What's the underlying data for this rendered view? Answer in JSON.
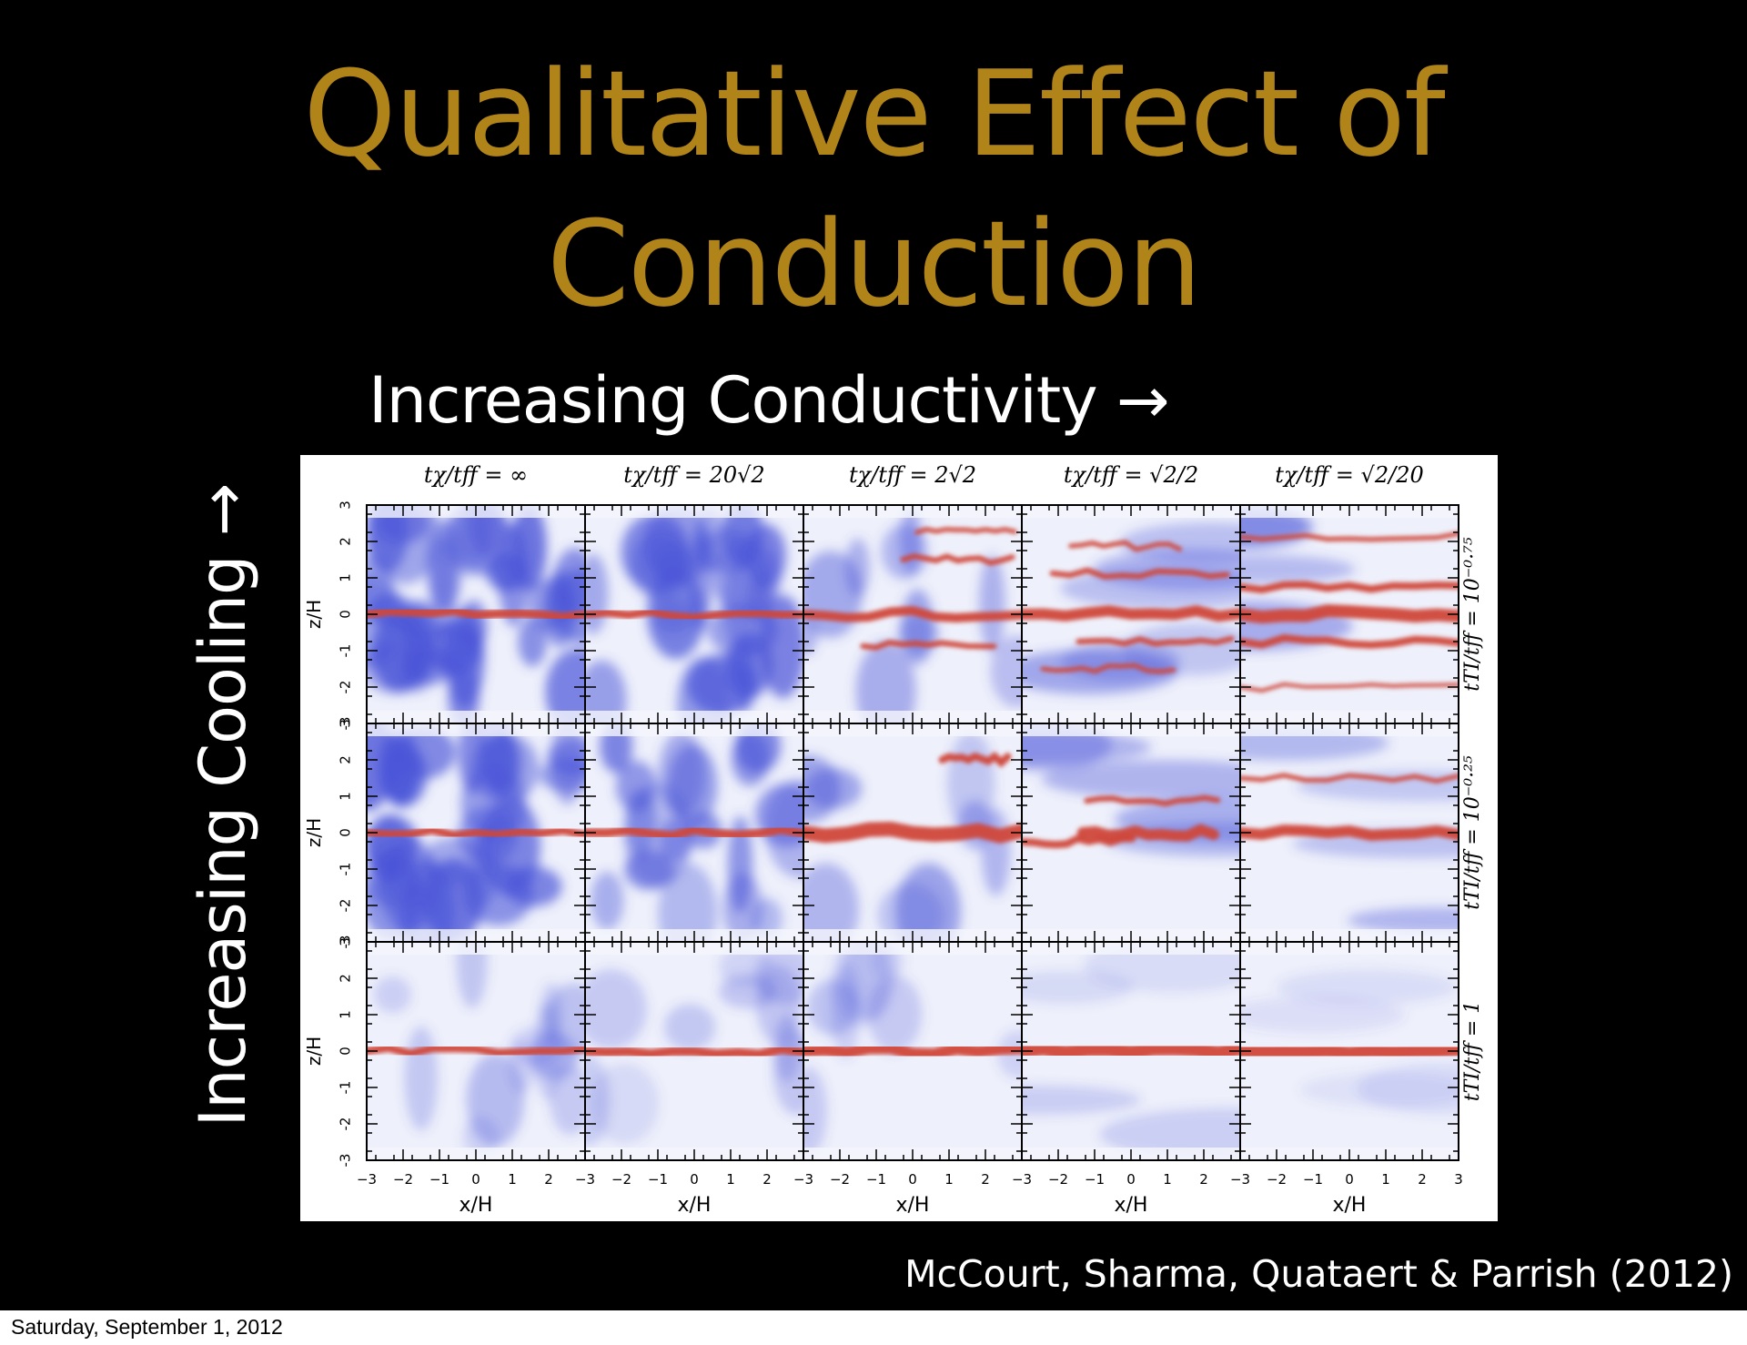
{
  "slide": {
    "title_line1": "Qualitative Effect of",
    "title_line2": "Conduction",
    "x_direction_label": "Increasing Conductivity →",
    "y_direction_label": "Increasing Cooling →",
    "citation": "McCourt, Sharma, Quataert & Parrish (2012)",
    "footer_date": "Saturday, September 1, 2012"
  },
  "figure": {
    "column_titles": [
      "tχ/tff = ∞",
      "tχ/tff = 20√2",
      "tχ/tff = 2√2",
      "tχ/tff = √2/2",
      "tχ/tff = √2/20"
    ],
    "row_labels": [
      "tTI/tff = 10⁻⁰·⁷⁵",
      "tTI/tff = 10⁻⁰·²⁵",
      "tTI/tff = 1"
    ],
    "x_axis_label": "x/H",
    "y_axis_label": "z/H",
    "x_tick_labels": [
      "−3",
      "−2",
      "−1",
      "0",
      "1",
      "2",
      "3"
    ],
    "y_tick_labels": [
      "3",
      "2",
      "1",
      "0",
      "-1",
      "-2",
      "-3"
    ],
    "colors": {
      "cold_gas": "#d0463a",
      "hot_gas": "#4a55d8",
      "background": "#ffffff"
    }
  }
}
